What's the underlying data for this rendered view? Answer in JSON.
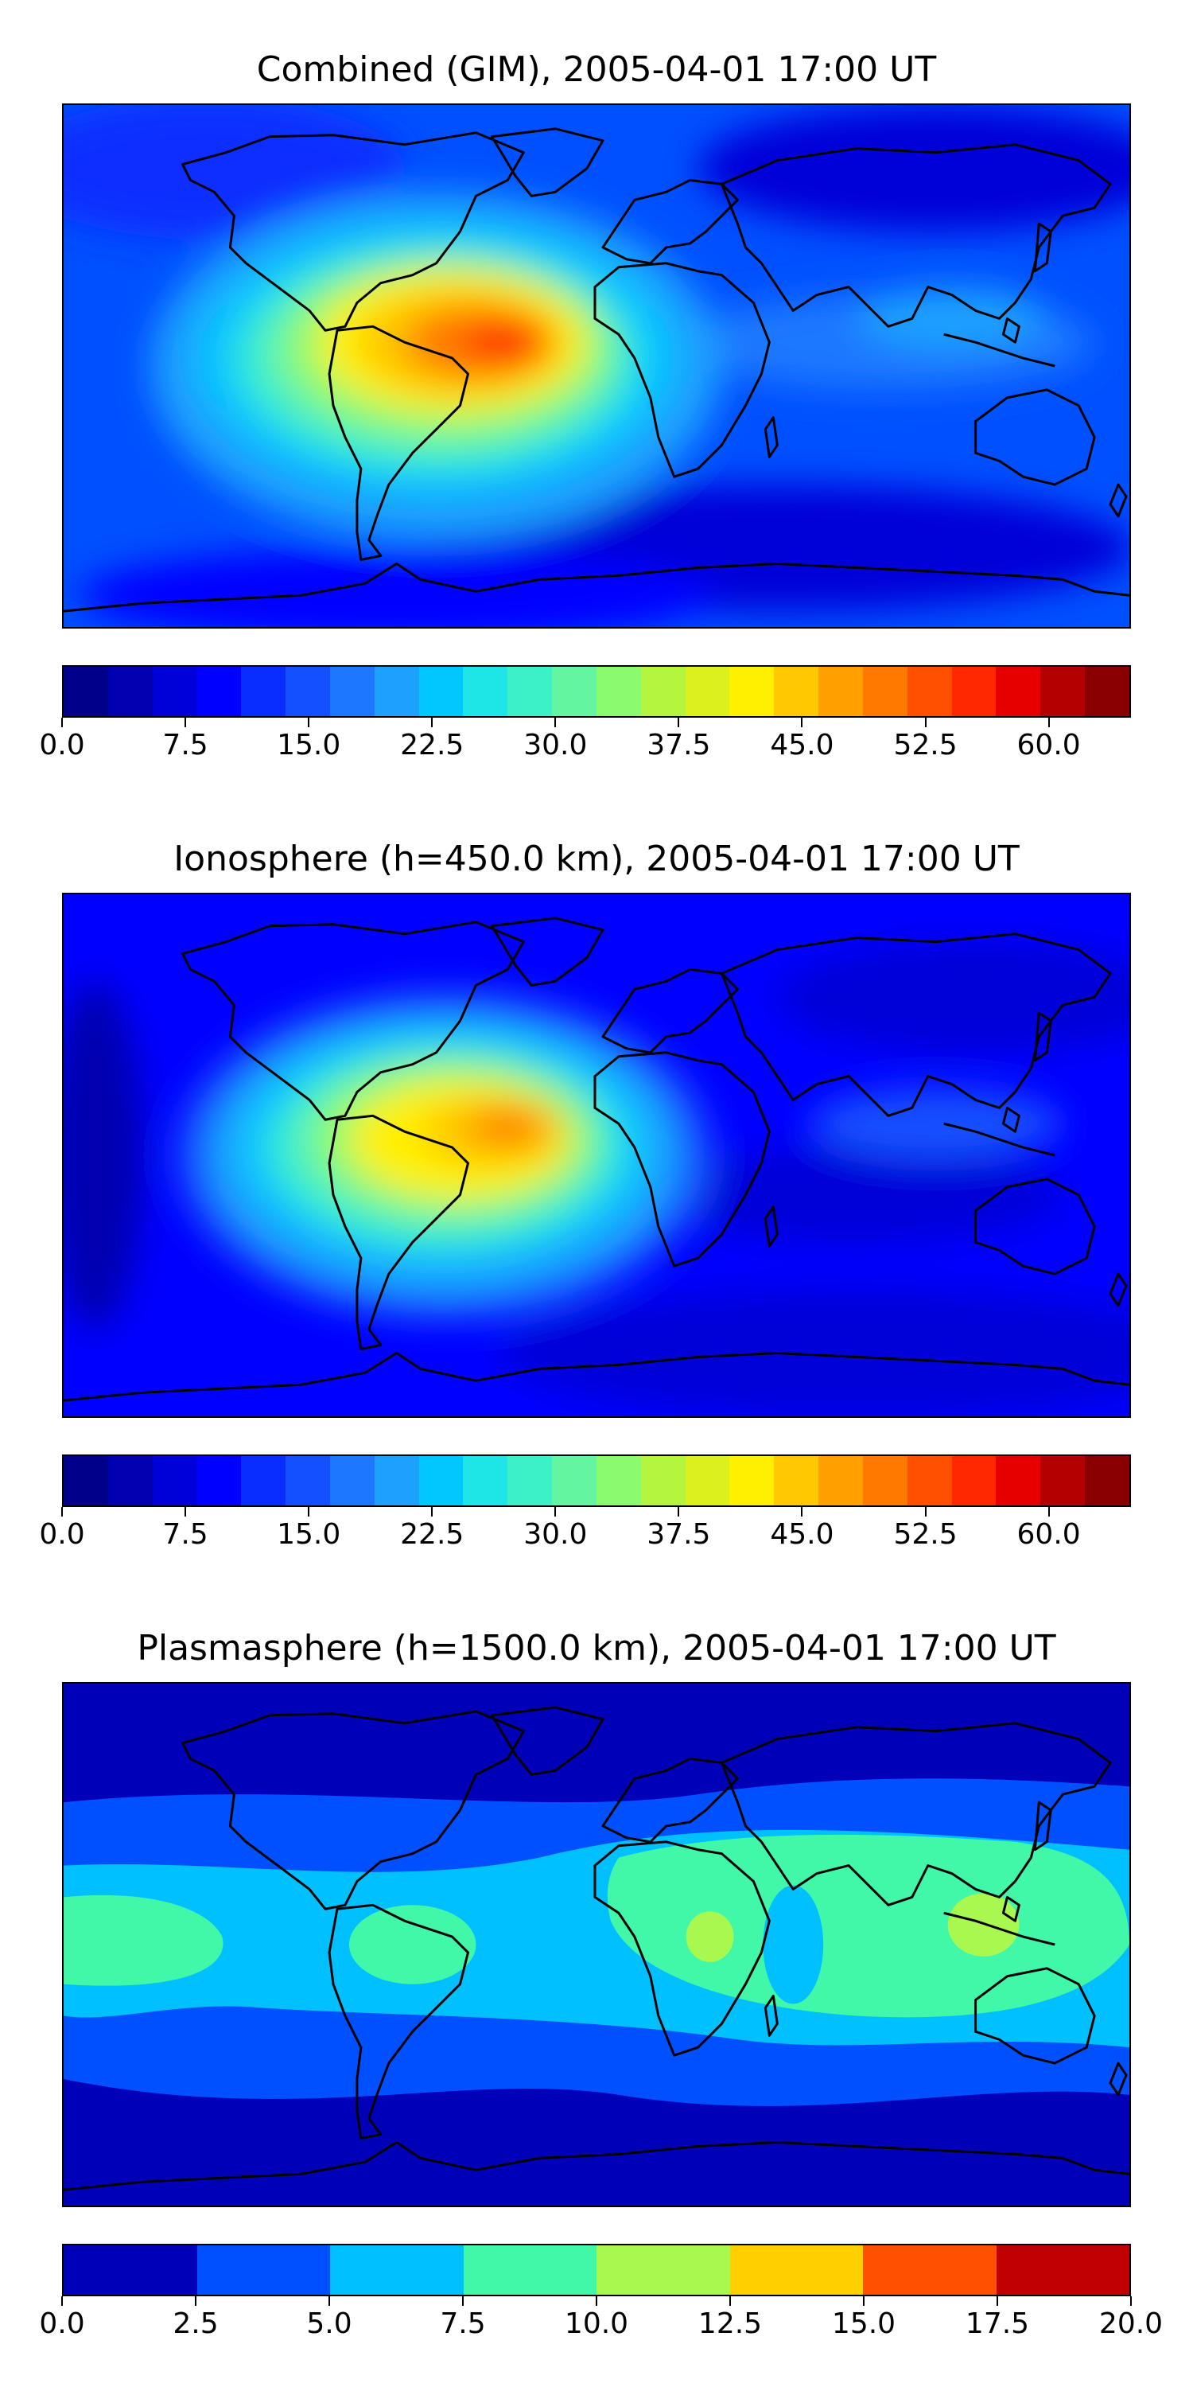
{
  "panels": [
    {
      "id": "combined",
      "title": "Combined (GIM), 2005-04-01 17:00 UT",
      "colorbar": {
        "vmin": 0,
        "vmax": 65,
        "colors": [
          "#00008a",
          "#0000b0",
          "#0000d8",
          "#0000ff",
          "#0a2dff",
          "#1450ff",
          "#1e78ff",
          "#1ea0ff",
          "#00c8ff",
          "#1ee6e6",
          "#3cf0c8",
          "#64f5a0",
          "#8cfa6e",
          "#b4f540",
          "#dcf01e",
          "#fff000",
          "#ffc800",
          "#ffa000",
          "#ff7800",
          "#ff5000",
          "#ff2800",
          "#e60000",
          "#b40000",
          "#8a0000"
        ],
        "ticks": [
          "0.0",
          "7.5",
          "15.0",
          "22.5",
          "30.0",
          "37.5",
          "45.0",
          "52.5",
          "60.0"
        ],
        "tick_values": [
          0,
          7.5,
          15,
          22.5,
          30,
          37.5,
          45,
          52.5,
          60
        ]
      }
    },
    {
      "id": "ionosphere",
      "title": "Ionosphere  (h=450.0 km), 2005-04-01 17:00 UT",
      "colorbar": {
        "vmin": 0,
        "vmax": 65,
        "colors": [
          "#00008a",
          "#0000b0",
          "#0000d8",
          "#0000ff",
          "#0a2dff",
          "#1450ff",
          "#1e78ff",
          "#1ea0ff",
          "#00c8ff",
          "#1ee6e6",
          "#3cf0c8",
          "#64f5a0",
          "#8cfa6e",
          "#b4f540",
          "#dcf01e",
          "#fff000",
          "#ffc800",
          "#ffa000",
          "#ff7800",
          "#ff5000",
          "#ff2800",
          "#e60000",
          "#b40000",
          "#8a0000"
        ],
        "ticks": [
          "0.0",
          "7.5",
          "15.0",
          "22.5",
          "30.0",
          "37.5",
          "45.0",
          "52.5",
          "60.0"
        ],
        "tick_values": [
          0,
          7.5,
          15,
          22.5,
          30,
          37.5,
          45,
          52.5,
          60
        ]
      }
    },
    {
      "id": "plasmasphere",
      "title": "Plasmasphere (h=1500.0 km), 2005-04-01 17:00 UT",
      "colorbar": {
        "vmin": 0,
        "vmax": 20,
        "colors": [
          "#0000b8",
          "#0050ff",
          "#00c0ff",
          "#40f8a8",
          "#a8f850",
          "#ffd000",
          "#ff5000",
          "#c00000"
        ],
        "ticks": [
          "0.0",
          "2.5",
          "5.0",
          "7.5",
          "10.0",
          "12.5",
          "15.0",
          "17.5",
          "20.0"
        ],
        "tick_values": [
          0,
          2.5,
          5,
          7.5,
          10,
          12.5,
          15,
          17.5,
          20
        ]
      }
    }
  ]
}
